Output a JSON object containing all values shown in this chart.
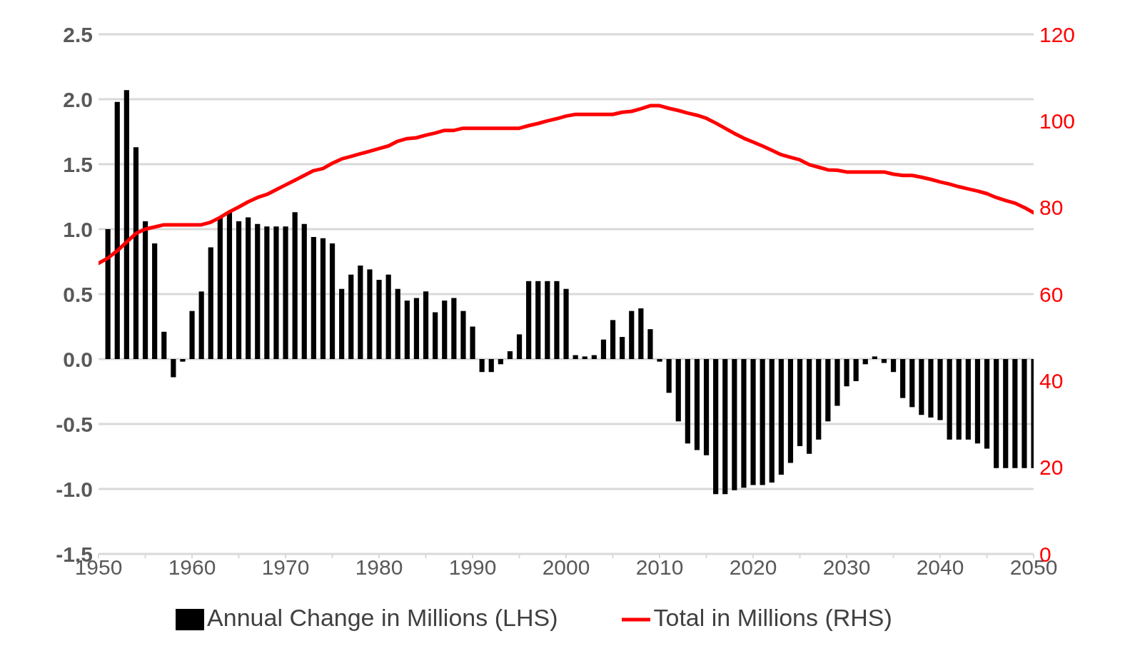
{
  "chart_data": {
    "type": "bar",
    "x": [
      1950,
      1951,
      1952,
      1953,
      1954,
      1955,
      1956,
      1957,
      1958,
      1959,
      1960,
      1961,
      1962,
      1963,
      1964,
      1965,
      1966,
      1967,
      1968,
      1969,
      1970,
      1971,
      1972,
      1973,
      1974,
      1975,
      1976,
      1977,
      1978,
      1979,
      1980,
      1981,
      1982,
      1983,
      1984,
      1985,
      1986,
      1987,
      1988,
      1989,
      1990,
      1991,
      1992,
      1993,
      1994,
      1995,
      1996,
      1997,
      1998,
      1999,
      2000,
      2001,
      2002,
      2003,
      2004,
      2005,
      2006,
      2007,
      2008,
      2009,
      2010,
      2011,
      2012,
      2013,
      2014,
      2015,
      2016,
      2017,
      2018,
      2019,
      2020,
      2021,
      2022,
      2023,
      2024,
      2025,
      2026,
      2027,
      2028,
      2029,
      2030,
      2031,
      2032,
      2033,
      2034,
      2035,
      2036,
      2037,
      2038,
      2039,
      2040,
      2041,
      2042,
      2043,
      2044,
      2045,
      2046,
      2047,
      2048,
      2049,
      2050
    ],
    "series": [
      {
        "name": "Annual Change in Millions (LHS)",
        "color": "#000000",
        "values": [
          null,
          1.0,
          1.98,
          2.07,
          1.63,
          1.06,
          0.89,
          0.21,
          -0.14,
          -0.02,
          0.37,
          0.52,
          0.86,
          1.09,
          1.13,
          1.06,
          1.09,
          1.04,
          1.02,
          1.02,
          1.02,
          1.13,
          1.04,
          0.94,
          0.93,
          0.89,
          0.54,
          0.65,
          0.72,
          0.69,
          0.61,
          0.65,
          0.54,
          0.45,
          0.47,
          0.52,
          0.36,
          0.45,
          0.47,
          0.37,
          0.25,
          -0.1,
          -0.1,
          -0.04,
          0.06,
          0.19,
          0.6,
          0.6,
          0.6,
          0.6,
          0.54,
          0.03,
          0.02,
          0.03,
          0.15,
          0.3,
          0.17,
          0.37,
          0.39,
          0.23,
          -0.02,
          -0.26,
          -0.48,
          -0.65,
          -0.7,
          -0.74,
          -1.04,
          -1.04,
          -1.01,
          -0.99,
          -0.97,
          -0.97,
          -0.95,
          -0.89,
          -0.8,
          -0.67,
          -0.73,
          -0.62,
          -0.48,
          -0.36,
          -0.21,
          -0.17,
          -0.04,
          0.02,
          -0.03,
          -0.1,
          -0.3,
          -0.37,
          -0.43,
          -0.45,
          -0.47,
          -0.62,
          -0.62,
          -0.62,
          -0.65,
          -0.69,
          -0.84,
          -0.84,
          -0.84,
          -0.84,
          -0.84
        ]
      },
      {
        "name": "Total in Millions (RHS)",
        "type": "line",
        "axis": "y2",
        "color": "#ff0000",
        "values": [
          67.1,
          68.3,
          70,
          72,
          74,
          75,
          75.5,
          76,
          76,
          76,
          76,
          76,
          76.6,
          77.7,
          79,
          80.1,
          81.3,
          82.3,
          83,
          84.1,
          85.2,
          86.3,
          87.4,
          88.5,
          89,
          90.2,
          91.2,
          91.8,
          92.4,
          93,
          93.6,
          94.2,
          95.3,
          95.9,
          96.1,
          96.7,
          97.2,
          97.8,
          97.8,
          98.3,
          98.3,
          98.3,
          98.3,
          98.3,
          98.3,
          98.3,
          98.9,
          99.4,
          100,
          100.5,
          101.1,
          101.5,
          101.5,
          101.5,
          101.5,
          101.5,
          102,
          102.2,
          102.8,
          103.5,
          103.5,
          102.9,
          102.4,
          101.8,
          101.3,
          100.6,
          99.5,
          98.3,
          97.1,
          96,
          95.1,
          94.2,
          93.2,
          92.2,
          91.6,
          91,
          89.9,
          89.3,
          88.7,
          88.6,
          88.2,
          88.2,
          88.2,
          88.2,
          88.2,
          87.7,
          87.4,
          87.4,
          87,
          86.5,
          85.9,
          85.4,
          84.8,
          84.3,
          83.8,
          83.2,
          82.3,
          81.6,
          81,
          80,
          78.8
        ]
      }
    ],
    "xlim": [
      1950,
      2050
    ],
    "xticks": [
      1950,
      {
        "value": 1955,
        "label": null
      },
      1960,
      {
        "value": 1965,
        "label": null
      },
      1970,
      {
        "value": 1975,
        "label": null
      },
      1980,
      {
        "value": 1985,
        "label": null
      },
      1990,
      {
        "value": 1995,
        "label": null
      },
      2000,
      {
        "value": 2005,
        "label": null
      },
      2010,
      {
        "value": 2015,
        "label": null
      },
      2020,
      {
        "value": 2025,
        "label": null
      },
      2030,
      {
        "value": 2035,
        "label": null
      },
      2040,
      {
        "value": 2045,
        "label": null
      },
      2050
    ],
    "ylim": [
      -1.5,
      2.5
    ],
    "yticks": [
      {
        "value": -1.5,
        "label": "-1.5"
      },
      {
        "value": -1,
        "label": "-1.0"
      },
      {
        "value": -0.5,
        "label": "-0.5"
      },
      {
        "value": 0,
        "label": "0.0"
      },
      {
        "value": 0.5,
        "label": "0.5"
      },
      {
        "value": 1,
        "label": "1.0"
      },
      {
        "value": 1.5,
        "label": "1.5"
      },
      {
        "value": 2,
        "label": "2.0"
      },
      {
        "value": 2.5,
        "label": "2.5"
      }
    ],
    "y2lim": [
      0,
      120
    ],
    "y2ticks": [
      0,
      20,
      40,
      60,
      80,
      100,
      120
    ],
    "grid": "y",
    "legend": "bottom"
  }
}
